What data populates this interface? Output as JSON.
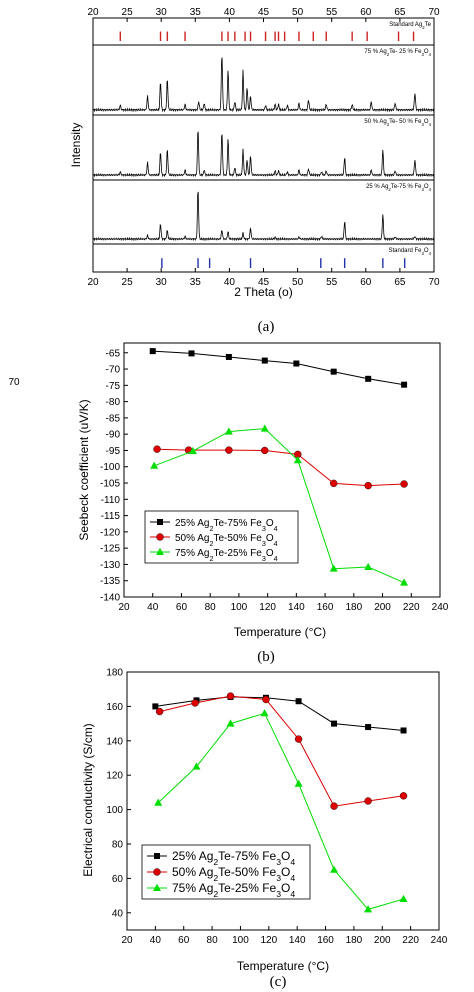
{
  "chart_data": [
    {
      "type": "line",
      "caption": "(a)",
      "xlabel": "2 Theta (o)",
      "ylabel": "Intensity",
      "xlim": [
        20,
        70
      ],
      "xticks": [
        "20",
        "25",
        "30",
        "35",
        "40",
        "45",
        "50",
        "55",
        "60",
        "65",
        "70"
      ],
      "panels": [
        {
          "name": "Standard Ag2Te",
          "kind": "reference",
          "color": "#cc2222",
          "peaks": [
            24.0,
            29.9,
            30.9,
            33.5,
            38.9,
            39.8,
            40.8,
            42.3,
            43.1,
            45.3,
            46.7,
            47.2,
            48.1,
            50.2,
            52.3,
            54.2,
            58.0,
            60.2,
            64.8,
            67.0
          ]
        },
        {
          "name": "75 % Ag2Te- 25 % Fe3O4",
          "kind": "pattern",
          "color": "#000000",
          "peaks": [
            [
              24.0,
              0.08
            ],
            [
              28.0,
              0.25
            ],
            [
              29.9,
              0.5
            ],
            [
              30.9,
              0.55
            ],
            [
              33.5,
              0.1
            ],
            [
              35.5,
              0.15
            ],
            [
              36.3,
              0.12
            ],
            [
              38.9,
              1.0
            ],
            [
              39.8,
              0.72
            ],
            [
              40.8,
              0.15
            ],
            [
              42.0,
              0.7
            ],
            [
              42.6,
              0.4
            ],
            [
              43.1,
              0.25
            ],
            [
              45.3,
              0.08
            ],
            [
              46.7,
              0.1
            ],
            [
              47.2,
              0.1
            ],
            [
              48.5,
              0.08
            ],
            [
              50.2,
              0.12
            ],
            [
              51.6,
              0.18
            ],
            [
              54.2,
              0.1
            ],
            [
              58.0,
              0.1
            ],
            [
              60.8,
              0.15
            ],
            [
              64.3,
              0.12
            ],
            [
              67.2,
              0.3
            ]
          ]
        },
        {
          "name": "50 % Ag2Te- 50 % Fe3O4",
          "kind": "pattern",
          "color": "#000000",
          "peaks": [
            [
              24.0,
              0.06
            ],
            [
              28.0,
              0.25
            ],
            [
              29.9,
              0.45
            ],
            [
              30.9,
              0.5
            ],
            [
              33.5,
              0.1
            ],
            [
              35.4,
              0.9
            ],
            [
              36.3,
              0.1
            ],
            [
              38.9,
              0.85
            ],
            [
              39.8,
              0.72
            ],
            [
              40.8,
              0.15
            ],
            [
              42.0,
              0.5
            ],
            [
              42.6,
              0.3
            ],
            [
              43.1,
              0.38
            ],
            [
              46.7,
              0.08
            ],
            [
              47.2,
              0.08
            ],
            [
              48.5,
              0.06
            ],
            [
              50.2,
              0.1
            ],
            [
              51.6,
              0.12
            ],
            [
              53.5,
              0.06
            ],
            [
              54.2,
              0.08
            ],
            [
              56.9,
              0.35
            ],
            [
              60.8,
              0.1
            ],
            [
              62.5,
              0.5
            ],
            [
              64.3,
              0.08
            ],
            [
              67.2,
              0.3
            ]
          ]
        },
        {
          "name": "25 % Ag2Te-75 % Fe3O4",
          "kind": "pattern",
          "color": "#000000",
          "peaks": [
            [
              18.3,
              0.05
            ],
            [
              28.0,
              0.07
            ],
            [
              29.9,
              0.3
            ],
            [
              30.9,
              0.17
            ],
            [
              33.5,
              0.05
            ],
            [
              35.4,
              1.0
            ],
            [
              38.9,
              0.18
            ],
            [
              39.8,
              0.15
            ],
            [
              42.0,
              0.12
            ],
            [
              43.1,
              0.22
            ],
            [
              46.7,
              0.04
            ],
            [
              50.2,
              0.04
            ],
            [
              53.5,
              0.05
            ],
            [
              56.9,
              0.36
            ],
            [
              62.5,
              0.5
            ],
            [
              64.3,
              0.04
            ],
            [
              67.2,
              0.05
            ]
          ]
        },
        {
          "name": "Standard Fe3O4",
          "kind": "reference",
          "color": "#2233aa",
          "peaks": [
            30.1,
            35.4,
            37.1,
            43.1,
            53.4,
            56.9,
            62.5,
            65.7
          ]
        }
      ]
    },
    {
      "type": "line",
      "caption": "(b)",
      "xlabel": "Temperature (°C)",
      "ylabel": "Seebeck coefficient (uV/K)",
      "xlim": [
        20,
        240
      ],
      "ylim": [
        -140,
        -62
      ],
      "xticks": [
        "20",
        "40",
        "60",
        "80",
        "100",
        "120",
        "140",
        "160",
        "180",
        "200",
        "220",
        "240"
      ],
      "yticks": [
        "-65",
        "-70",
        "-75",
        "-80",
        "-85",
        "-90",
        "-95",
        "-100",
        "-105",
        "-110",
        "-115",
        "-120",
        "-125",
        "-130",
        "-135",
        "-140"
      ],
      "legend_position": "bottom-left",
      "series": [
        {
          "name": "25% Ag2Te-75% Fe3O4",
          "color": "#000000",
          "marker": "square",
          "x": [
            40,
            67,
            93,
            118,
            140,
            166,
            190,
            215
          ],
          "y": [
            -64.5,
            -65.2,
            -66.3,
            -67.4,
            -68.3,
            -70.8,
            -73,
            -74.8
          ]
        },
        {
          "name": "50% Ag2Te-50% Fe3O4",
          "color": "#dd0000",
          "marker": "circle",
          "x": [
            43,
            65,
            93,
            118,
            141,
            166,
            190,
            215
          ],
          "y": [
            -94.6,
            -94.9,
            -94.9,
            -95.0,
            -96.2,
            -105.1,
            -105.8,
            -105.3
          ]
        },
        {
          "name": "75% Ag2Te-25% Fe3O4",
          "color": "#00dd00",
          "marker": "triangle",
          "x": [
            41,
            68,
            93,
            118,
            141,
            166,
            190,
            215
          ],
          "y": [
            -99.7,
            -95.2,
            -89.2,
            -88.3,
            -98.0,
            -131.3,
            -130.8,
            -135.6
          ]
        }
      ]
    },
    {
      "type": "line",
      "caption": "(c)",
      "xlabel": "Temperature (°C)",
      "ylabel": "Electrical conductivity (S/cm)",
      "xlim": [
        20,
        240
      ],
      "ylim": [
        30,
        180
      ],
      "xticks": [
        "20",
        "40",
        "60",
        "80",
        "100",
        "120",
        "140",
        "160",
        "180",
        "200",
        "220",
        "240"
      ],
      "yticks": [
        "40",
        "60",
        "80",
        "100",
        "120",
        "140",
        "160",
        "180"
      ],
      "legend_position": "bottom-left",
      "series": [
        {
          "name": "25% Ag2Te-75% Fe3O4",
          "color": "#000000",
          "marker": "square",
          "x": [
            40,
            69,
            93,
            118,
            141,
            166,
            190,
            215
          ],
          "y": [
            160,
            163.5,
            165.5,
            165,
            163,
            150,
            148,
            146
          ]
        },
        {
          "name": "50% Ag2Te-50% Fe3O4",
          "color": "#dd0000",
          "marker": "circle",
          "x": [
            43,
            68,
            93,
            118,
            141,
            166,
            190,
            215
          ],
          "y": [
            157,
            162,
            166,
            164,
            141,
            102,
            105,
            108
          ]
        },
        {
          "name": "75% Ag2Te-25% Fe3O4",
          "color": "#00dd00",
          "marker": "triangle",
          "x": [
            42,
            69,
            93,
            117,
            141,
            166,
            190,
            215
          ],
          "y": [
            104,
            125,
            150,
            156,
            115,
            65,
            42,
            48
          ]
        }
      ]
    }
  ],
  "left_fragment": {
    "tick": "70"
  }
}
